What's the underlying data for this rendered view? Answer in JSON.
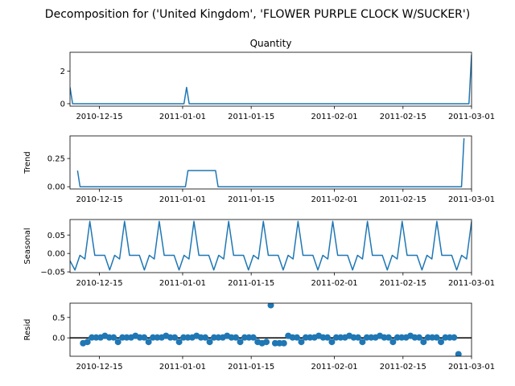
{
  "figure": {
    "suptitle": "Decomposition for ('United Kingdom', 'FLOWER PURPLE CLOCK W/SUCKER')",
    "line_color": "#1f77b4"
  },
  "chart_data": [
    {
      "type": "line",
      "title": "Quantity",
      "ylabel": "",
      "x_start": "2010-12-09",
      "x_end": "2011-03-01",
      "xlim": [
        "2010-12-09",
        "2011-03-01"
      ],
      "xticks": [
        "2010-12-15",
        "2011-01-01",
        "2011-01-15",
        "2011-02-01",
        "2011-02-15",
        "2011-03-01"
      ],
      "ylim": [
        -0.15,
        3.15
      ],
      "yticks": [
        0,
        2
      ],
      "values": [
        1,
        0,
        0,
        0,
        0,
        0,
        0,
        0,
        0,
        0,
        0,
        0,
        0,
        0,
        0,
        0,
        0,
        0,
        0,
        0,
        0,
        0,
        0,
        0,
        0,
        0,
        0,
        0,
        0,
        0,
        0,
        0,
        0,
        0,
        0,
        0,
        0,
        0,
        0,
        0,
        0,
        0,
        0,
        0,
        0,
        1,
        0,
        0,
        0,
        0,
        0,
        0,
        0,
        0,
        0,
        0,
        0,
        0,
        0,
        0,
        0,
        0,
        0,
        0,
        0,
        0,
        0,
        0,
        0,
        0,
        0,
        0,
        0,
        0,
        0,
        0,
        0,
        0,
        0,
        0,
        0,
        0,
        0,
        0,
        0,
        0,
        0,
        0,
        0,
        0,
        0,
        0,
        0,
        0,
        0,
        0,
        0,
        0,
        0,
        0,
        0,
        0,
        0,
        0,
        0,
        0,
        0,
        0,
        0,
        0,
        0,
        0,
        0,
        0,
        0,
        0,
        0,
        0,
        0,
        0,
        0,
        0,
        0,
        0,
        0,
        0,
        0,
        0,
        0,
        0,
        0,
        0,
        0,
        0,
        0,
        0,
        0,
        0,
        0,
        0,
        0,
        0,
        0,
        0,
        0,
        0,
        0,
        0,
        0,
        0,
        0,
        0,
        0,
        0,
        0,
        3
      ]
    },
    {
      "type": "line",
      "title": "",
      "ylabel": "Trend",
      "x_start": "2010-12-09",
      "x_end": "2011-03-01",
      "xlim": [
        "2010-12-09",
        "2011-03-01"
      ],
      "xticks": [
        "2010-12-15",
        "2011-01-01",
        "2011-01-15",
        "2011-02-01",
        "2011-02-15",
        "2011-03-01"
      ],
      "ylim": [
        -0.02,
        0.45
      ],
      "yticks": [
        0.0,
        0.25
      ],
      "yticklabels": [
        "0.00",
        "0.25"
      ],
      "values": [
        null,
        null,
        null,
        0.143,
        0,
        0,
        0,
        0,
        0,
        0,
        0,
        0,
        0,
        0,
        0,
        0,
        0,
        0,
        0,
        0,
        0,
        0,
        0,
        0,
        0,
        0,
        0,
        0,
        0,
        0,
        0,
        0,
        0,
        0,
        0,
        0,
        0,
        0,
        0,
        0,
        0,
        0,
        0,
        0,
        0,
        0,
        0,
        0.143,
        0.143,
        0.143,
        0.143,
        0.143,
        0.143,
        0.143,
        0.143,
        0.143,
        0.143,
        0.143,
        0.143,
        0,
        0,
        0,
        0,
        0,
        0,
        0,
        0,
        0,
        0,
        0,
        0,
        0,
        0,
        0,
        0,
        0,
        0,
        0,
        0,
        0,
        0,
        0,
        0,
        0,
        0,
        0,
        0,
        0,
        0,
        0,
        0,
        0,
        0,
        0,
        0,
        0,
        0,
        0,
        0,
        0,
        0,
        0,
        0,
        0,
        0,
        0,
        0,
        0,
        0,
        0,
        0,
        0,
        0,
        0,
        0,
        0,
        0,
        0,
        0,
        0,
        0,
        0,
        0,
        0,
        0,
        0,
        0,
        0,
        0,
        0,
        0,
        0,
        0,
        0,
        0,
        0,
        0,
        0,
        0,
        0,
        0,
        0,
        0,
        0,
        0,
        0,
        0,
        0,
        0,
        0,
        0,
        0,
        0,
        0,
        0,
        0,
        0,
        0.43,
        null,
        null,
        null
      ]
    },
    {
      "type": "line",
      "title": "",
      "ylabel": "Seasonal",
      "x_start": "2010-12-09",
      "x_end": "2011-03-01",
      "xlim": [
        "2010-12-09",
        "2011-03-01"
      ],
      "xticks": [
        "2010-12-15",
        "2011-01-01",
        "2011-01-15",
        "2011-02-01",
        "2011-02-15",
        "2011-03-01"
      ],
      "ylim": [
        -0.052,
        0.092
      ],
      "yticks": [
        -0.05,
        0.0,
        0.05
      ],
      "yticklabels": [
        "−0.05",
        "0.00",
        "0.05"
      ],
      "values": [
        -0.02,
        -0.045,
        -0.005,
        -0.015,
        0.087,
        -0.005,
        -0.005,
        -0.005,
        -0.045,
        -0.005,
        -0.015,
        0.087,
        -0.005,
        -0.005,
        -0.005,
        -0.045,
        -0.005,
        -0.015,
        0.087,
        -0.005,
        -0.005,
        -0.005,
        -0.045,
        -0.005,
        -0.015,
        0.087,
        -0.005,
        -0.005,
        -0.005,
        -0.045,
        -0.005,
        -0.015,
        0.087,
        -0.005,
        -0.005,
        -0.005,
        -0.045,
        -0.005,
        -0.015,
        0.087,
        -0.005,
        -0.005,
        -0.005,
        -0.045,
        -0.005,
        -0.015,
        0.087,
        -0.005,
        -0.005,
        -0.005,
        -0.045,
        -0.005,
        -0.015,
        0.087,
        -0.005,
        -0.005,
        -0.005,
        -0.045,
        -0.005,
        -0.015,
        0.087,
        -0.005,
        -0.005,
        -0.005,
        -0.045,
        -0.005,
        -0.015,
        0.087,
        -0.005,
        -0.005,
        -0.005,
        -0.045,
        -0.005,
        -0.015,
        0.087,
        -0.005,
        -0.005,
        -0.005,
        -0.045,
        -0.005,
        -0.015,
        0.087
      ]
    },
    {
      "type": "scatter",
      "title": "",
      "ylabel": "Resid",
      "x_start": "2010-12-09",
      "x_end": "2011-03-01",
      "xlim": [
        "2010-12-09",
        "2011-03-01"
      ],
      "xticks": [
        "2010-12-15",
        "2011-01-01",
        "2011-01-15",
        "2011-02-01",
        "2011-02-15",
        "2011-03-01"
      ],
      "ylim": [
        -0.45,
        0.85
      ],
      "yticks": [
        0.0,
        0.5
      ],
      "yticklabels": [
        "0.0",
        "0.5"
      ],
      "zero_line": true,
      "values": [
        null,
        null,
        null,
        -0.13,
        -0.1,
        0.01,
        0.01,
        0.01,
        0.05,
        0.01,
        0.01,
        -0.1,
        0.01,
        0.01,
        0.01,
        0.05,
        0.01,
        0.01,
        -0.1,
        0.01,
        0.01,
        0.01,
        0.05,
        0.01,
        0.01,
        -0.1,
        0.01,
        0.01,
        0.01,
        0.05,
        0.01,
        0.01,
        -0.1,
        0.01,
        0.01,
        0.01,
        0.05,
        0.01,
        0.01,
        -0.1,
        0.01,
        0.01,
        0.01,
        -0.1,
        -0.13,
        -0.1,
        0.8,
        -0.13,
        -0.13,
        -0.13,
        0.05,
        0.01,
        0.01,
        -0.1,
        0.01,
        0.01,
        0.01,
        0.05,
        0.01,
        0.01,
        -0.1,
        0.01,
        0.01,
        0.01,
        0.05,
        0.01,
        0.01,
        -0.1,
        0.01,
        0.01,
        0.01,
        0.05,
        0.01,
        0.01,
        -0.1,
        0.01,
        0.01,
        0.01,
        0.05,
        0.01,
        0.01,
        -0.1,
        0.01,
        0.01,
        0.01,
        -0.1,
        0.01,
        0.01,
        0.01,
        -0.4,
        null,
        null,
        null
      ]
    }
  ]
}
